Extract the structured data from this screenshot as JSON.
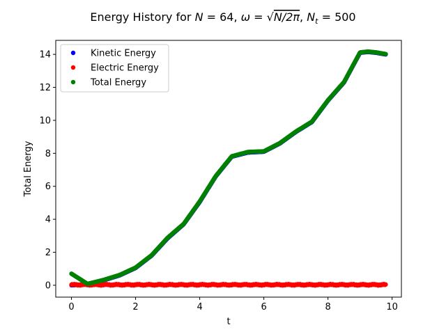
{
  "chart_data": {
    "type": "scatter",
    "title": {
      "prefix": "Energy History for ",
      "n_symbol": "N",
      "n_value": " = 64, ",
      "omega_symbol": "ω",
      "omega_value_prefix": " = ",
      "omega_radicand": "N/2π",
      "separator": ", ",
      "nt_symbol": "N",
      "nt_subscript": "t",
      "nt_value": " = 500"
    },
    "xlabel": "t",
    "ylabel": "Total Energy",
    "xlim": [
      -0.49,
      10.29
    ],
    "ylim": [
      -0.72,
      14.85
    ],
    "xticks": [
      0,
      2,
      4,
      6,
      8,
      10
    ],
    "yticks": [
      0,
      2,
      4,
      6,
      8,
      10,
      12,
      14
    ],
    "xtick_labels": [
      "0",
      "2",
      "4",
      "6",
      "8",
      "10"
    ],
    "ytick_labels": [
      "0",
      "2",
      "4",
      "6",
      "8",
      "10",
      "12",
      "14"
    ],
    "legend_position": "top-left",
    "n_points": 500,
    "t_end": 9.8,
    "series": [
      {
        "name": "Kinetic Energy",
        "color": "#0000ff",
        "x": [
          0,
          0.5,
          1,
          1.5,
          2,
          2.5,
          3,
          3.5,
          4,
          4.5,
          5,
          5.5,
          6,
          6.5,
          7,
          7.5,
          8,
          8.5,
          9,
          9.25,
          9.5,
          9.8
        ],
        "y": [
          0,
          0.07,
          0.3,
          0.6,
          1.05,
          1.8,
          2.85,
          3.7,
          5.05,
          6.6,
          7.8,
          8.05,
          8.1,
          8.6,
          9.3,
          9.9,
          11.2,
          12.3,
          14.1,
          14.15,
          14.1,
          14.0
        ]
      },
      {
        "name": "Electric Energy",
        "color": "#ff0000",
        "x": [
          0,
          9.8
        ],
        "y": [
          0.03,
          0.03
        ]
      },
      {
        "name": "Total Energy",
        "color": "#008000",
        "x": [
          0,
          0.5,
          1,
          1.5,
          2,
          2.5,
          3,
          3.5,
          4,
          4.5,
          5,
          5.5,
          6,
          6.5,
          7,
          7.5,
          8,
          8.5,
          9,
          9.25,
          9.5,
          9.8
        ],
        "y": [
          0.7,
          0.08,
          0.32,
          0.62,
          1.07,
          1.82,
          2.88,
          3.72,
          5.08,
          6.62,
          7.82,
          8.08,
          8.12,
          8.62,
          9.32,
          9.92,
          11.22,
          12.32,
          14.12,
          14.17,
          14.12,
          14.02
        ]
      }
    ]
  }
}
